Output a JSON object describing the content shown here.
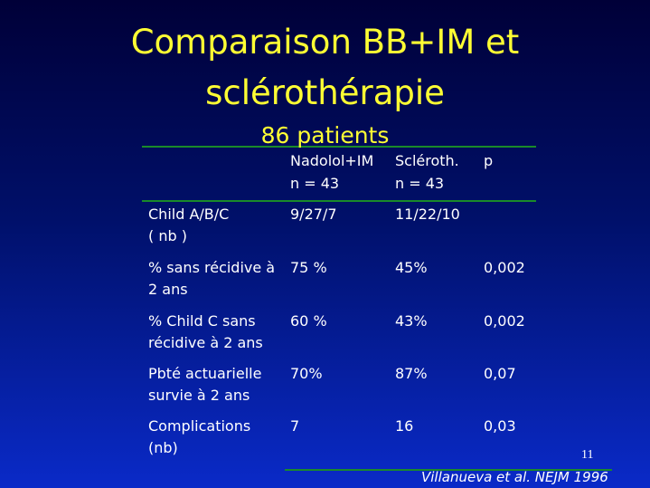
{
  "title": [
    "Comparaison BB+IM et",
    "sclérothérapie"
  ],
  "subtitle": "86 patients",
  "table": {
    "header": [
      [
        "Nadolol+IM",
        "n = 43"
      ],
      [
        "Scléroth.",
        "n = 43"
      ],
      [
        "p"
      ]
    ],
    "rows": [
      {
        "label": [
          "Child A/B/C",
          "( nb )"
        ],
        "cells": [
          "9/27/7",
          "11/22/10"
        ]
      },
      {
        "label": [
          "% sans récidive à",
          "2 ans"
        ],
        "cells": [
          "75 %",
          "45%",
          "0,002"
        ]
      },
      {
        "label": [
          "% Child C sans",
          "récidive à 2 ans"
        ],
        "cells": [
          "60 %",
          "43%",
          "0,002"
        ]
      },
      {
        "label": [
          "Pbté actuarielle",
          "survie à 2 ans"
        ],
        "cells": [
          "70%",
          "87%",
          "0,07"
        ]
      },
      {
        "label": [
          "Complications",
          "(nb)"
        ],
        "cells": [
          "7",
          "16",
          "0,03"
        ]
      }
    ]
  },
  "page_number": "11",
  "citation": "Villanueva et al. NEJM 1996"
}
